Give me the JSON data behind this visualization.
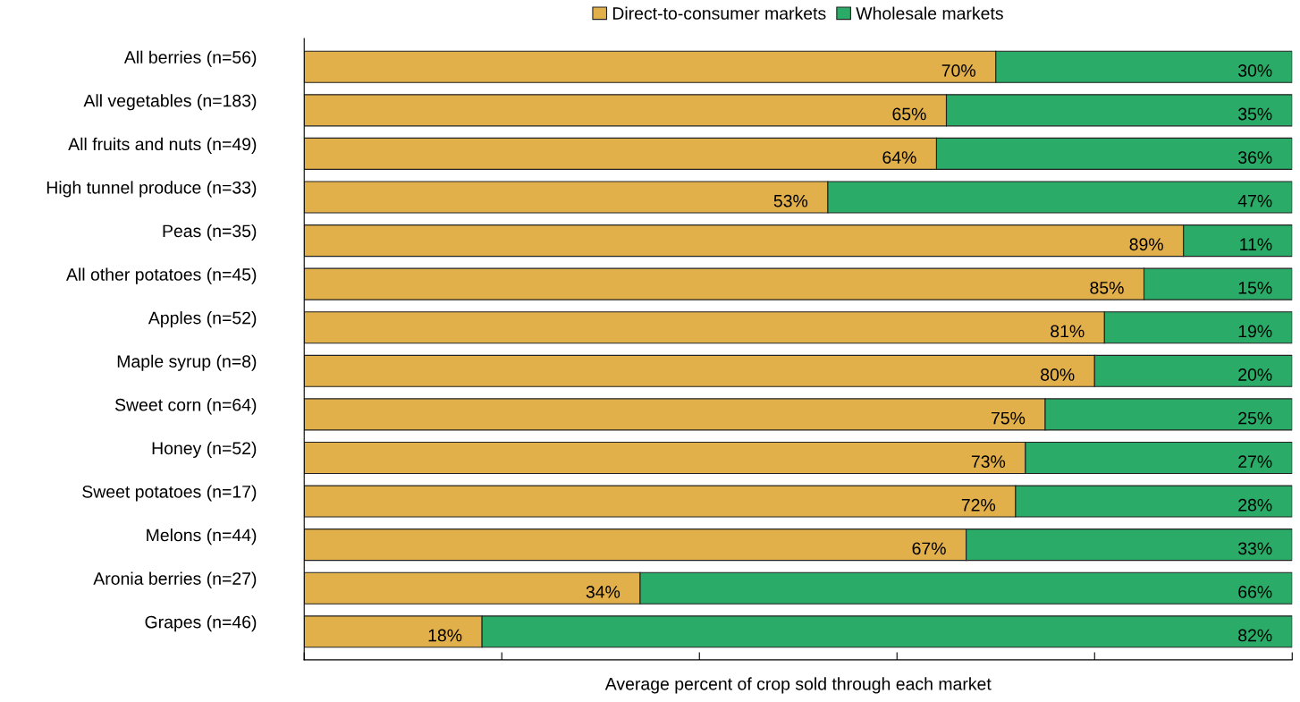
{
  "chart_data": {
    "type": "bar",
    "orientation": "horizontal",
    "stacked": true,
    "categories": [
      "All berries (n=56)",
      "All vegetables (n=183)",
      "All fruits and nuts (n=49)",
      "High tunnel produce (n=33)",
      "Peas (n=35)",
      "All other potatoes (n=45)",
      "Apples (n=52)",
      "Maple syrup (n=8)",
      "Sweet corn (n=64)",
      "Honey (n=52)",
      "Sweet potatoes (n=17)",
      "Melons (n=44)",
      "Aronia berries (n=27)",
      "Grapes (n=46)"
    ],
    "series": [
      {
        "name": "Direct-to-consumer markets",
        "color": "#e2b04a",
        "values": [
          70,
          65,
          64,
          53,
          89,
          85,
          81,
          80,
          75,
          73,
          72,
          67,
          34,
          18
        ],
        "value_labels": [
          "70%",
          "65%",
          "64%",
          "53%",
          "89%",
          "85%",
          "81%",
          "80%",
          "75%",
          "73%",
          "72%",
          "67%",
          "34%",
          "18%"
        ]
      },
      {
        "name": "Wholesale markets",
        "color": "#2aab67",
        "values": [
          30,
          35,
          36,
          47,
          11,
          15,
          19,
          20,
          25,
          27,
          28,
          33,
          66,
          82
        ],
        "value_labels": [
          "30%",
          "35%",
          "36%",
          "47%",
          "11%",
          "15%",
          "19%",
          "20%",
          "25%",
          "27%",
          "28%",
          "33%",
          "66%",
          "82%"
        ]
      }
    ],
    "xlabel": "Average percent of crop sold through each market",
    "xlim": [
      0,
      100
    ],
    "xticks": [
      {
        "value": 0,
        "label": null
      },
      {
        "value": 20,
        "label": null
      },
      {
        "value": 40,
        "label": null
      },
      {
        "value": 60,
        "label": null
      },
      {
        "value": 80,
        "label": null
      },
      {
        "value": 100,
        "label": null
      }
    ],
    "tick_labels": "y",
    "legend": "top",
    "grid": false
  }
}
